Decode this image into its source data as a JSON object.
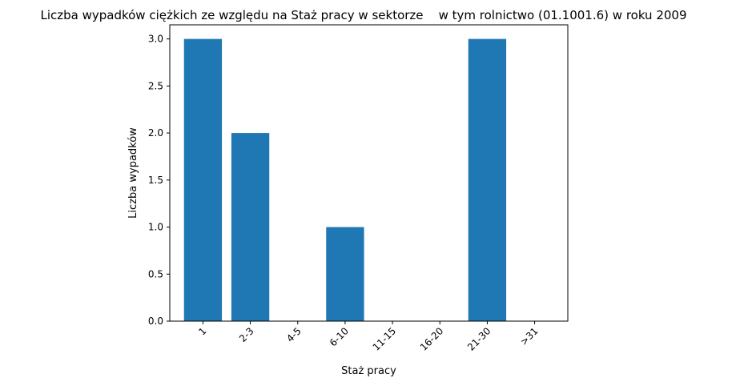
{
  "chart_data": {
    "type": "bar",
    "title": "Liczba wypadków ciężkich ze względu na Staż pracy w sektorze    w tym rolnictwo (01.1001.6) w roku 2009",
    "xlabel": "Staż pracy",
    "ylabel": "Liczba wypadków",
    "categories": [
      "1",
      "2-3",
      "4-5",
      "6-10",
      "11-15",
      "16-20",
      "21-30",
      ">31"
    ],
    "values": [
      3,
      2,
      0,
      1,
      0,
      0,
      3,
      0
    ],
    "ylim": [
      0,
      3.15
    ],
    "yticks": [
      "0.0",
      "0.5",
      "1.0",
      "1.5",
      "2.0",
      "2.5",
      "3.0"
    ],
    "x_tick_rotation": 45,
    "grid": false,
    "legend": "none",
    "bar_color": "#1f77b4"
  }
}
